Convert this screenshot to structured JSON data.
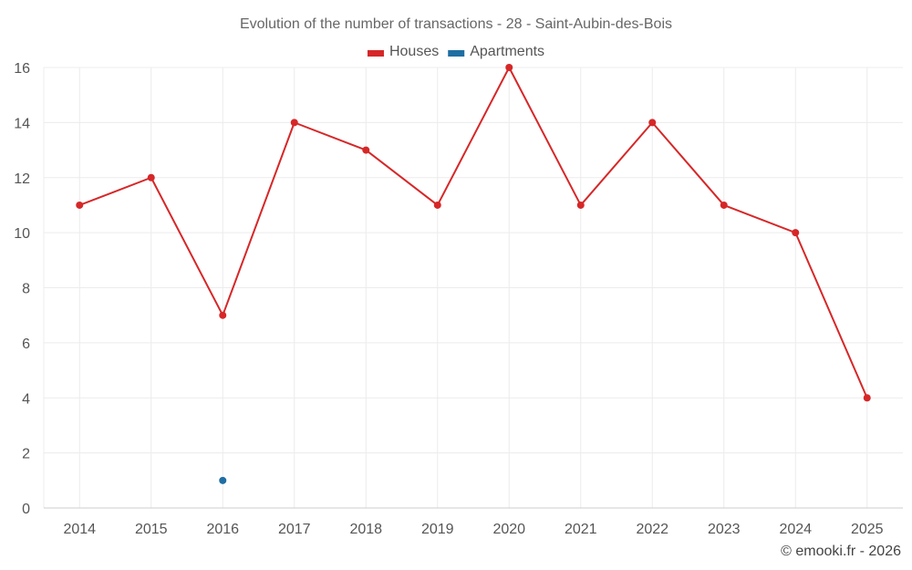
{
  "chart_data": {
    "type": "line",
    "title": "Evolution of the number of transactions - 28 - Saint-Aubin-des-Bois",
    "categories": [
      "2014",
      "2015",
      "2016",
      "2017",
      "2018",
      "2019",
      "2020",
      "2021",
      "2022",
      "2023",
      "2024",
      "2025"
    ],
    "series": [
      {
        "name": "Houses",
        "color": "#d62728",
        "values": [
          11,
          12,
          7,
          14,
          13,
          11,
          16,
          11,
          14,
          11,
          10,
          4
        ]
      },
      {
        "name": "Apartments",
        "color": "#1f6ea3",
        "values": [
          null,
          null,
          1,
          null,
          null,
          null,
          null,
          null,
          null,
          null,
          null,
          null
        ]
      }
    ],
    "ylim": [
      0,
      16
    ],
    "yticks": [
      0,
      2,
      4,
      6,
      8,
      10,
      12,
      14,
      16
    ],
    "xlabel": "",
    "ylabel": "",
    "legend_position": "top-center",
    "grid": true
  },
  "credit": "© emooki.fr - 2026"
}
